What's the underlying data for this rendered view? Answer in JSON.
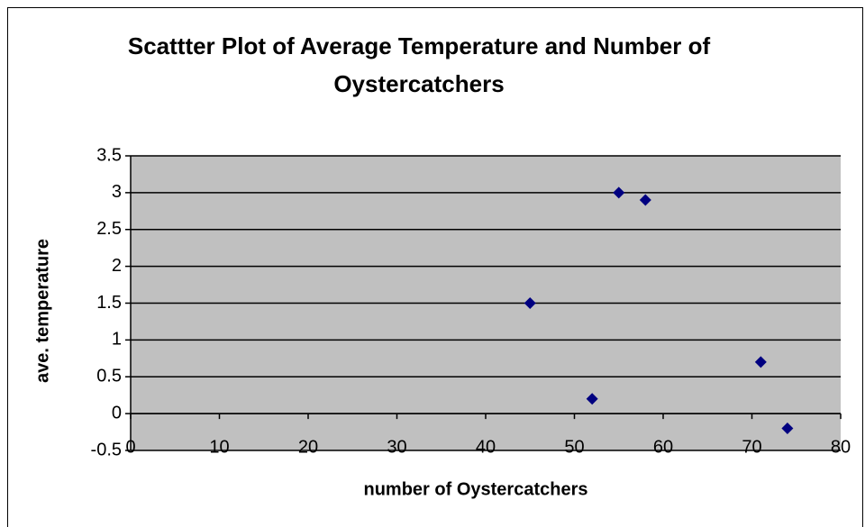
{
  "chart_data": {
    "type": "scatter",
    "title": "Scattter Plot of Average Temperature and Number of Oystercatchers",
    "x_label": "number of Oystercatchers",
    "y_label": "ave. temperature",
    "x": [
      45,
      52,
      55,
      58,
      71,
      74
    ],
    "y": [
      1.5,
      0.2,
      3,
      2.9,
      0.7,
      -0.2
    ],
    "color": "#000080",
    "xlim": [
      0,
      80
    ],
    "xticks": [
      0,
      10,
      20,
      30,
      40,
      50,
      60,
      70,
      80
    ],
    "ylim": [
      -0.5,
      3.5
    ],
    "yticks": [
      -0.5,
      0,
      0.5,
      1,
      1.5,
      2,
      2.5,
      3,
      3.5
    ],
    "grid": true
  }
}
